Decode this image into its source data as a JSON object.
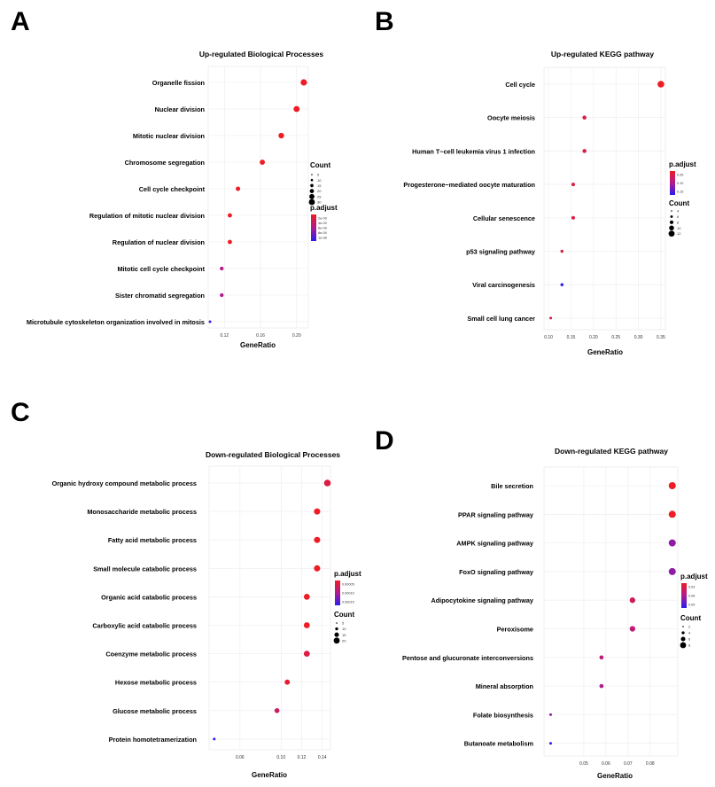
{
  "panels": [
    {
      "letter": "A",
      "title": "Up-regulated Biological Processes",
      "xlabel": "GeneRatio",
      "legend": {
        "order": "count-first",
        "count_title": "Count",
        "count_labels": [
          "5",
          "10",
          "15",
          "20",
          "25",
          "30"
        ],
        "padj_title": "p.adjust",
        "padj_labels": [
          "2e-09",
          "4e-09",
          "6e-09",
          "8e-09",
          "1e-08"
        ]
      }
    },
    {
      "letter": "B",
      "title": "Up-regulated KEGG pathway",
      "xlabel": "GeneRatio",
      "legend": {
        "order": "padj-first",
        "count_title": "Count",
        "count_labels": [
          "4",
          "6",
          "8",
          "10",
          "12"
        ],
        "padj_title": "p.adjust",
        "padj_labels": [
          "0.05",
          "0.10",
          "0.15"
        ]
      }
    },
    {
      "letter": "C",
      "title": "Down-regulated Biological Processes",
      "xlabel": "GeneRatio",
      "legend": {
        "order": "padj-first",
        "count_title": "Count",
        "count_labels": [
          "5",
          "10",
          "15",
          "20"
        ],
        "padj_title": "p.adjust",
        "padj_labels": [
          "0.00005",
          "0.00010",
          "0.00015"
        ]
      }
    },
    {
      "letter": "D",
      "title": "Down-regulated KEGG pathway",
      "xlabel": "GeneRatio",
      "legend": {
        "order": "padj-first",
        "count_title": "Count",
        "count_labels": [
          "2",
          "4",
          "6",
          "8"
        ],
        "padj_title": "p.adjust",
        "padj_labels": [
          "0.03",
          "0.06",
          "0.09"
        ]
      }
    }
  ],
  "chart_data": [
    {
      "type": "scatter",
      "title": "Up-regulated Biological Processes",
      "xlabel": "GeneRatio",
      "xlim": [
        0.102,
        0.213
      ],
      "xticks": [
        0.12,
        0.16,
        0.2
      ],
      "xtick_labels": [
        "0.12",
        "0.16",
        "0.20"
      ],
      "points": [
        {
          "term": "Organelle fission",
          "x": 0.208,
          "count": 30,
          "padj": 1e-09
        },
        {
          "term": "Nuclear division",
          "x": 0.2,
          "count": 28,
          "padj": 1e-09
        },
        {
          "term": "Mitotic nuclear division",
          "x": 0.183,
          "count": 25,
          "padj": 1e-09
        },
        {
          "term": "Chromosome segregation",
          "x": 0.162,
          "count": 22,
          "padj": 1e-09
        },
        {
          "term": "Cell cycle checkpoint",
          "x": 0.135,
          "count": 17,
          "padj": 1e-09
        },
        {
          "term": "Regulation of mitotic nuclear division",
          "x": 0.126,
          "count": 16,
          "padj": 1e-09
        },
        {
          "term": "Regulation of nuclear division",
          "x": 0.126,
          "count": 16,
          "padj": 1e-09
        },
        {
          "term": "Mitotic cell cycle checkpoint",
          "x": 0.117,
          "count": 13,
          "padj": 5e-09
        },
        {
          "term": "Sister chromatid segregation",
          "x": 0.117,
          "count": 13,
          "padj": 5.5e-09
        },
        {
          "term": "Microtubule cytoskeleton organization involved in mitosis",
          "x": 0.104,
          "count": 5,
          "padj": 9.5e-09
        }
      ]
    },
    {
      "type": "scatter",
      "title": "Up-regulated KEGG pathway",
      "xlabel": "GeneRatio",
      "xlim": [
        0.09,
        0.36
      ],
      "xticks": [
        0.1,
        0.15,
        0.2,
        0.25,
        0.3,
        0.35
      ],
      "xtick_labels": [
        "0.10",
        "0.15",
        "0.20",
        "0.25",
        "0.30",
        "0.35"
      ],
      "points": [
        {
          "term": "Cell cycle",
          "x": 0.35,
          "count": 12,
          "padj": 0.005
        },
        {
          "term": "Oocyte meiosis",
          "x": 0.18,
          "count": 6,
          "padj": 0.03
        },
        {
          "term": "Human T−cell leukemia virus 1 infection",
          "x": 0.18,
          "count": 6,
          "padj": 0.03
        },
        {
          "term": "Progesterone−mediated oocyte maturation",
          "x": 0.155,
          "count": 5,
          "padj": 0.03
        },
        {
          "term": "Cellular senescence",
          "x": 0.155,
          "count": 5,
          "padj": 0.03
        },
        {
          "term": "p53 signaling pathway",
          "x": 0.13,
          "count": 4,
          "padj": 0.03
        },
        {
          "term": "Viral carcinogenesis",
          "x": 0.13,
          "count": 4,
          "padj": 0.17
        },
        {
          "term": "Small cell lung cancer",
          "x": 0.105,
          "count": 3,
          "padj": 0.03
        }
      ]
    },
    {
      "type": "scatter",
      "title": "Down-regulated Biological Processes",
      "xlabel": "GeneRatio",
      "xlim": [
        0.03,
        0.148
      ],
      "xticks": [
        0.06,
        0.1,
        0.12,
        0.14
      ],
      "xtick_labels": [
        "0.06",
        "0.10",
        "0.12",
        "0.14"
      ],
      "points": [
        {
          "term": "Organic hydroxy compound metabolic process",
          "x": 0.145,
          "count": 20,
          "padj": 4e-05
        },
        {
          "term": "Monosaccharide metabolic process",
          "x": 0.135,
          "count": 18,
          "padj": 2e-05
        },
        {
          "term": "Fatty acid metabolic process",
          "x": 0.135,
          "count": 18,
          "padj": 2e-05
        },
        {
          "term": "Small molecule catabolic process",
          "x": 0.135,
          "count": 18,
          "padj": 2e-05
        },
        {
          "term": "Organic acid catabolic process",
          "x": 0.125,
          "count": 17,
          "padj": 2e-05
        },
        {
          "term": "Carboxylic acid catabolic process",
          "x": 0.125,
          "count": 17,
          "padj": 2e-05
        },
        {
          "term": "Coenzyme metabolic process",
          "x": 0.125,
          "count": 17,
          "padj": 4e-05
        },
        {
          "term": "Hexose metabolic process",
          "x": 0.106,
          "count": 14,
          "padj": 3e-05
        },
        {
          "term": "Glucose metabolic process",
          "x": 0.096,
          "count": 13,
          "padj": 6e-05
        },
        {
          "term": "Protein homotetramerization",
          "x": 0.035,
          "count": 4,
          "padj": 0.00016
        }
      ]
    },
    {
      "type": "scatter",
      "title": "Down-regulated KEGG pathway",
      "xlabel": "GeneRatio",
      "xlim": [
        0.032,
        0.0925
      ],
      "xticks": [
        0.05,
        0.06,
        0.07,
        0.08
      ],
      "xtick_labels": [
        "0.05",
        "0.06",
        "0.07",
        "0.08"
      ],
      "points": [
        {
          "term": "Bile secretion",
          "x": 0.09,
          "count": 8,
          "padj": 0.01
        },
        {
          "term": "PPAR signaling pathway",
          "x": 0.09,
          "count": 8,
          "padj": 0.01
        },
        {
          "term": "AMPK signaling pathway",
          "x": 0.09,
          "count": 8,
          "padj": 0.06
        },
        {
          "term": "FoxO signaling pathway",
          "x": 0.09,
          "count": 8,
          "padj": 0.06
        },
        {
          "term": "Adipocytokine signaling pathway",
          "x": 0.072,
          "count": 6,
          "padj": 0.03
        },
        {
          "term": "Peroxisome",
          "x": 0.072,
          "count": 6,
          "padj": 0.04
        },
        {
          "term": "Pentose and glucuronate interconversions",
          "x": 0.058,
          "count": 4,
          "padj": 0.04
        },
        {
          "term": "Mineral absorption",
          "x": 0.058,
          "count": 4,
          "padj": 0.05
        },
        {
          "term": "Folate biosynthesis",
          "x": 0.035,
          "count": 2,
          "padj": 0.06
        },
        {
          "term": "Butanoate metabolism",
          "x": 0.035,
          "count": 2,
          "padj": 0.09
        }
      ]
    }
  ]
}
